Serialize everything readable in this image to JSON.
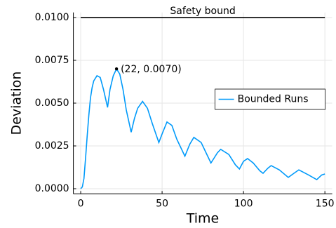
{
  "chart_data": {
    "type": "line",
    "xlabel": "Time",
    "ylabel": "Deviation",
    "xlim": [
      -4.5,
      154.5
    ],
    "xticks": [
      0,
      50,
      100,
      150
    ],
    "ylim": [
      -0.0003,
      0.0103
    ],
    "yticks": [
      {
        "value": 0,
        "label": "0.0000"
      },
      {
        "value": 0.0025,
        "label": "0.0025"
      },
      {
        "value": 0.005,
        "label": "0.0050"
      },
      {
        "value": 0.0075,
        "label": "0.0075"
      },
      {
        "value": 0.01,
        "label": "0.0100"
      }
    ],
    "grid": true,
    "legend": "right",
    "series": [
      {
        "name": "Bounded Runs",
        "color": "#009afa",
        "x": [
          0,
          1,
          2,
          3,
          4,
          5,
          6,
          7,
          8,
          10,
          12,
          14,
          16.5,
          18,
          20,
          22,
          24,
          26,
          28,
          31,
          33,
          35,
          38,
          41,
          44,
          48,
          50,
          53,
          56,
          59,
          64,
          67,
          69.5,
          74,
          78,
          80,
          84,
          86,
          91,
          95,
          97.5,
          100,
          102.5,
          106,
          110,
          112,
          115,
          117,
          122,
          127.5,
          131,
          134,
          140,
          145,
          148,
          150
        ],
        "values": [
          0,
          0.0001,
          0.0006,
          0.0018,
          0.0031,
          0.0043,
          0.0053,
          0.0059,
          0.0063,
          0.0066,
          0.0065,
          0.0058,
          0.00475,
          0.0058,
          0.0066,
          0.007,
          0.0067,
          0.0058,
          0.0046,
          0.0033,
          0.0041,
          0.0047,
          0.0051,
          0.0047,
          0.0038,
          0.0027,
          0.0032,
          0.0039,
          0.0037,
          0.0029,
          0.0019,
          0.0026,
          0.003,
          0.0027,
          0.0019,
          0.0015,
          0.0021,
          0.0023,
          0.002,
          0.0014,
          0.00115,
          0.0016,
          0.00176,
          0.0015,
          0.00105,
          0.0009,
          0.0012,
          0.00135,
          0.0011,
          0.00066,
          0.0009,
          0.0011,
          0.0008,
          0.00053,
          0.0008,
          0.00086
        ]
      }
    ],
    "safety_bound": {
      "value": 0.01,
      "label": "Safety bound",
      "color": "#000000"
    },
    "annotations": [
      {
        "x": 22,
        "y": 0.007,
        "label": "(22, 0.0070)"
      }
    ]
  }
}
